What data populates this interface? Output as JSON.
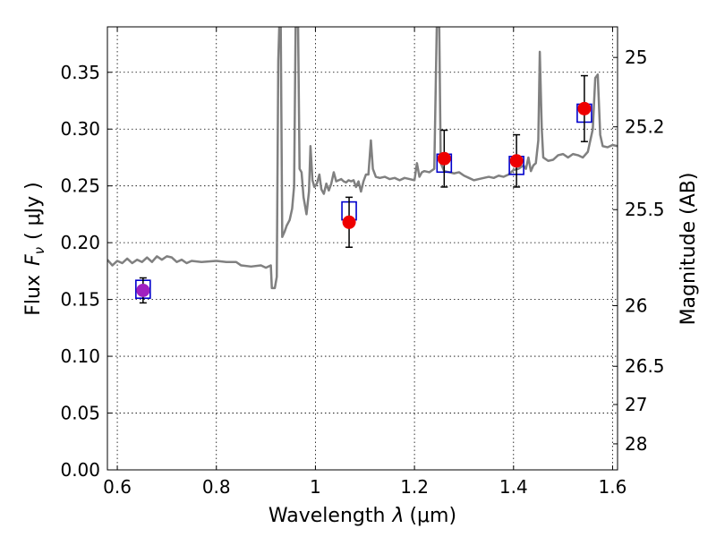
{
  "chart_data": {
    "type": "scatter",
    "title": "",
    "xlabel": "Wavelength",
    "xlabel_symbol": "λ",
    "xlabel_unit": "(μm)",
    "ylabel": "Flux",
    "ylabel_symbol": "F",
    "ylabel_subscript": "ν",
    "ylabel_unit": "( μJy )",
    "y2label": "Magnitude (AB)",
    "xlim": [
      0.58,
      1.61
    ],
    "ylim": [
      0.0,
      0.39
    ],
    "grid": true,
    "x_ticks": [
      {
        "value": 0.6,
        "label": "0.6"
      },
      {
        "value": 0.8,
        "label": "0.8"
      },
      {
        "value": 1.0,
        "label": "1"
      },
      {
        "value": 1.2,
        "label": "1.2"
      },
      {
        "value": 1.4,
        "label": "1.4"
      },
      {
        "value": 1.6,
        "label": "1.6"
      }
    ],
    "y_ticks": [
      {
        "value": 0.0,
        "label": "0.00"
      },
      {
        "value": 0.05,
        "label": "0.05"
      },
      {
        "value": 0.1,
        "label": "0.10"
      },
      {
        "value": 0.15,
        "label": "0.15"
      },
      {
        "value": 0.2,
        "label": "0.20"
      },
      {
        "value": 0.25,
        "label": "0.25"
      },
      {
        "value": 0.3,
        "label": "0.30"
      },
      {
        "value": 0.35,
        "label": "0.35"
      }
    ],
    "y2_ticks": [
      {
        "mag": 25,
        "label": "25"
      },
      {
        "mag": 25.2,
        "label": "25.2"
      },
      {
        "mag": 25.5,
        "label": "25.5"
      },
      {
        "mag": 26,
        "label": "26"
      },
      {
        "mag": 26.5,
        "label": "26.5"
      },
      {
        "mag": 27,
        "label": "27"
      },
      {
        "mag": 28,
        "label": "28"
      }
    ],
    "model_spectrum": {
      "color": "#808080",
      "points": [
        [
          0.58,
          0.185
        ],
        [
          0.59,
          0.18
        ],
        [
          0.6,
          0.184
        ],
        [
          0.61,
          0.182
        ],
        [
          0.62,
          0.186
        ],
        [
          0.63,
          0.182
        ],
        [
          0.64,
          0.185
        ],
        [
          0.65,
          0.183
        ],
        [
          0.66,
          0.187
        ],
        [
          0.67,
          0.183
        ],
        [
          0.68,
          0.188
        ],
        [
          0.69,
          0.185
        ],
        [
          0.7,
          0.188
        ],
        [
          0.71,
          0.187
        ],
        [
          0.72,
          0.183
        ],
        [
          0.73,
          0.185
        ],
        [
          0.74,
          0.182
        ],
        [
          0.75,
          0.184
        ],
        [
          0.77,
          0.183
        ],
        [
          0.8,
          0.184
        ],
        [
          0.82,
          0.183
        ],
        [
          0.84,
          0.183
        ],
        [
          0.85,
          0.18
        ],
        [
          0.87,
          0.179
        ],
        [
          0.89,
          0.18
        ],
        [
          0.9,
          0.178
        ],
        [
          0.91,
          0.18
        ],
        [
          0.912,
          0.16
        ],
        [
          0.918,
          0.16
        ],
        [
          0.922,
          0.17
        ],
        [
          0.925,
          0.36
        ],
        [
          0.927,
          0.39
        ],
        [
          0.93,
          0.39
        ],
        [
          0.933,
          0.205
        ],
        [
          0.938,
          0.21
        ],
        [
          0.942,
          0.215
        ],
        [
          0.948,
          0.22
        ],
        [
          0.953,
          0.23
        ],
        [
          0.957,
          0.25
        ],
        [
          0.96,
          0.39
        ],
        [
          0.965,
          0.39
        ],
        [
          0.968,
          0.265
        ],
        [
          0.972,
          0.262
        ],
        [
          0.976,
          0.24
        ],
        [
          0.982,
          0.225
        ],
        [
          0.987,
          0.245
        ],
        [
          0.99,
          0.285
        ],
        [
          0.994,
          0.255
        ],
        [
          0.998,
          0.249
        ],
        [
          1.003,
          0.252
        ],
        [
          1.008,
          0.26
        ],
        [
          1.012,
          0.247
        ],
        [
          1.017,
          0.243
        ],
        [
          1.022,
          0.252
        ],
        [
          1.027,
          0.246
        ],
        [
          1.032,
          0.252
        ],
        [
          1.037,
          0.262
        ],
        [
          1.042,
          0.254
        ],
        [
          1.047,
          0.255
        ],
        [
          1.052,
          0.256
        ],
        [
          1.057,
          0.254
        ],
        [
          1.062,
          0.253
        ],
        [
          1.067,
          0.255
        ],
        [
          1.072,
          0.254
        ],
        [
          1.077,
          0.255
        ],
        [
          1.082,
          0.249
        ],
        [
          1.087,
          0.254
        ],
        [
          1.092,
          0.245
        ],
        [
          1.097,
          0.254
        ],
        [
          1.102,
          0.26
        ],
        [
          1.107,
          0.26
        ],
        [
          1.112,
          0.29
        ],
        [
          1.116,
          0.265
        ],
        [
          1.122,
          0.258
        ],
        [
          1.13,
          0.257
        ],
        [
          1.14,
          0.258
        ],
        [
          1.15,
          0.256
        ],
        [
          1.16,
          0.257
        ],
        [
          1.17,
          0.255
        ],
        [
          1.18,
          0.257
        ],
        [
          1.19,
          0.256
        ],
        [
          1.2,
          0.255
        ],
        [
          1.205,
          0.27
        ],
        [
          1.21,
          0.258
        ],
        [
          1.215,
          0.262
        ],
        [
          1.22,
          0.263
        ],
        [
          1.23,
          0.262
        ],
        [
          1.24,
          0.265
        ],
        [
          1.245,
          0.39
        ],
        [
          1.25,
          0.39
        ],
        [
          1.253,
          0.27
        ],
        [
          1.26,
          0.263
        ],
        [
          1.27,
          0.262
        ],
        [
          1.28,
          0.261
        ],
        [
          1.29,
          0.262
        ],
        [
          1.3,
          0.259
        ],
        [
          1.31,
          0.257
        ],
        [
          1.32,
          0.255
        ],
        [
          1.33,
          0.256
        ],
        [
          1.34,
          0.257
        ],
        [
          1.35,
          0.258
        ],
        [
          1.36,
          0.257
        ],
        [
          1.37,
          0.259
        ],
        [
          1.38,
          0.258
        ],
        [
          1.39,
          0.26
        ],
        [
          1.4,
          0.264
        ],
        [
          1.41,
          0.265
        ],
        [
          1.42,
          0.268
        ],
        [
          1.425,
          0.265
        ],
        [
          1.43,
          0.275
        ],
        [
          1.435,
          0.263
        ],
        [
          1.44,
          0.268
        ],
        [
          1.445,
          0.27
        ],
        [
          1.45,
          0.29
        ],
        [
          1.453,
          0.368
        ],
        [
          1.457,
          0.3
        ],
        [
          1.46,
          0.275
        ],
        [
          1.47,
          0.272
        ],
        [
          1.48,
          0.273
        ],
        [
          1.49,
          0.277
        ],
        [
          1.5,
          0.278
        ],
        [
          1.51,
          0.275
        ],
        [
          1.52,
          0.278
        ],
        [
          1.53,
          0.277
        ],
        [
          1.54,
          0.275
        ],
        [
          1.55,
          0.28
        ],
        [
          1.56,
          0.3
        ],
        [
          1.565,
          0.345
        ],
        [
          1.57,
          0.348
        ],
        [
          1.575,
          0.295
        ],
        [
          1.58,
          0.285
        ],
        [
          1.59,
          0.284
        ],
        [
          1.6,
          0.286
        ],
        [
          1.61,
          0.285
        ]
      ]
    },
    "model_photometry": {
      "marker": "square",
      "color": "#0000cc",
      "points": [
        [
          0.652,
          0.159
        ],
        [
          1.068,
          0.228
        ],
        [
          1.26,
          0.27
        ],
        [
          1.406,
          0.268
        ],
        [
          1.543,
          0.314
        ]
      ]
    },
    "observed": {
      "marker": "circle",
      "color": "#ee0000",
      "points": [
        {
          "x": 0.652,
          "y": 0.158,
          "yerr": 0.011,
          "color": "#a020c0"
        },
        {
          "x": 1.068,
          "y": 0.218,
          "yerr": 0.022
        },
        {
          "x": 1.26,
          "y": 0.274,
          "yerr": 0.025
        },
        {
          "x": 1.406,
          "y": 0.272,
          "yerr": 0.023
        },
        {
          "x": 1.543,
          "y": 0.318,
          "yerr": 0.029
        }
      ]
    }
  }
}
